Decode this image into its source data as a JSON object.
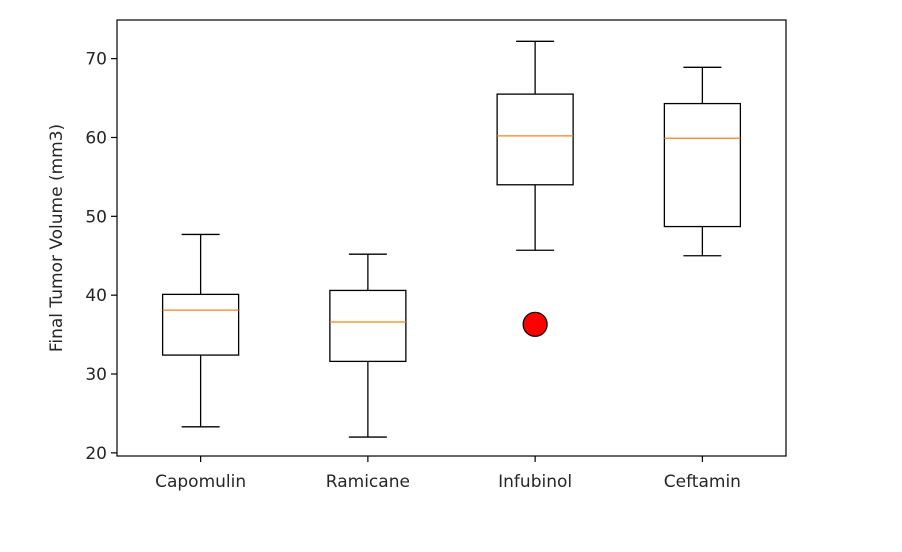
{
  "chart_data": {
    "type": "boxplot",
    "title": "",
    "xlabel": "",
    "ylabel": "Final Tumor Volume (mm3)",
    "ylim": [
      19.6,
      74.9
    ],
    "yticks": [
      20,
      30,
      40,
      50,
      60,
      70
    ],
    "grid": false,
    "categories": [
      "Capomulin",
      "Ramicane",
      "Infubinol",
      "Ceftamin"
    ],
    "boxes": [
      {
        "category": "Capomulin",
        "whisker_low": 23.3,
        "q1": 32.4,
        "median": 38.1,
        "q3": 40.1,
        "whisker_high": 47.7,
        "outliers": []
      },
      {
        "category": "Ramicane",
        "whisker_low": 22.0,
        "q1": 31.6,
        "median": 36.6,
        "q3": 40.6,
        "whisker_high": 45.2,
        "outliers": []
      },
      {
        "category": "Infubinol",
        "whisker_low": 45.7,
        "q1": 54.0,
        "median": 60.2,
        "q3": 65.5,
        "whisker_high": 72.2,
        "outliers": [
          36.3
        ]
      },
      {
        "category": "Ceftamin",
        "whisker_low": 45.0,
        "q1": 48.7,
        "median": 59.9,
        "q3": 64.3,
        "whisker_high": 68.9,
        "outliers": []
      }
    ],
    "colors": {
      "box": "#000000",
      "median": "#ff7f0e",
      "outlier_fill": "#ff0000",
      "outlier_edge": "#000000"
    }
  }
}
